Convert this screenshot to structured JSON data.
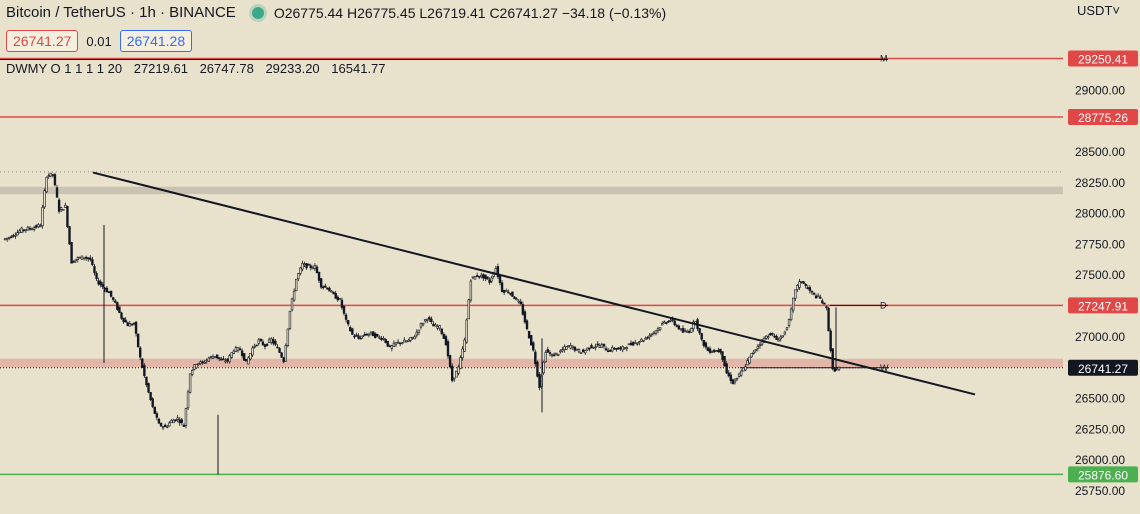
{
  "header": {
    "symbol": "Bitcoin / TetherUS · 1h · BINANCE",
    "ohlc": "O26775.44 H26775.45 L26719.41 C26741.27 −34.18 (−0.13%)",
    "sell_price": "26741.27",
    "spread": "0.01",
    "buy_price": "26741.28"
  },
  "indicator": {
    "name": "DWMY O 1 1 1 1 20",
    "values": [
      "27219.61",
      "26747.78",
      "29233.20",
      "16541.77"
    ]
  },
  "currency": "USDT˅",
  "chart_data": {
    "type": "candlestick",
    "symbol": "BTCUSDT",
    "interval": "1h",
    "ylim": [
      25750,
      29400
    ],
    "y_ticks": [
      29000,
      28750,
      28500,
      28250,
      28000,
      27750,
      27500,
      27250,
      27000,
      26750,
      26500,
      26250,
      26000,
      25750
    ],
    "y_tick_labels": [
      "29000.00",
      "28750.00",
      "28500.00",
      "28250.00",
      "28000.00",
      "27750.00",
      "27500.00",
      "27250.00",
      "27000.00",
      "26750.00",
      "26500.00",
      "26250.00",
      "26000.00",
      "25750.00"
    ],
    "price_levels": [
      {
        "value": 29250.41,
        "label": "29250.41",
        "color": "#e04848",
        "mark": "M"
      },
      {
        "value": 28775.26,
        "label": "28775.26",
        "color": "#e04848",
        "mark": ""
      },
      {
        "value": 27247.91,
        "label": "27247.91",
        "color": "#e04848",
        "mark": "D"
      },
      {
        "value": 25876.6,
        "label": "25876.60",
        "color": "#4caf50",
        "mark": ""
      }
    ],
    "last_price": {
      "value": 26741.27,
      "label": "26741.27",
      "mark": "W"
    },
    "zones": [
      {
        "from": 28150,
        "to": 28210,
        "color": "#c9c3b3"
      },
      {
        "from": 26745,
        "to": 26815,
        "color": "#e2b6a8"
      }
    ],
    "trendline": {
      "from": 28325,
      "to": 26525
    },
    "close_path": [
      27780,
      27800,
      27830,
      27860,
      27870,
      27880,
      27900,
      28300,
      28310,
      28020,
      28050,
      27600,
      27630,
      27640,
      27620,
      27450,
      27400,
      27350,
      27260,
      27150,
      27090,
      27100,
      26820,
      26600,
      26420,
      26280,
      26260,
      26310,
      26330,
      26270,
      26700,
      26780,
      26780,
      26820,
      26840,
      26800,
      26800,
      26890,
      26890,
      26780,
      26900,
      26960,
      26920,
      26970,
      26900,
      26800,
      27200,
      27460,
      27580,
      27560,
      27560,
      27410,
      27390,
      27330,
      27290,
      27120,
      27010,
      26980,
      27010,
      27020,
      26990,
      26980,
      26900,
      26940,
      26950,
      26960,
      27000,
      27090,
      27150,
      27080,
      27070,
      26940,
      26640,
      26740,
      26960,
      27460,
      27490,
      27480,
      27440,
      27550,
      27370,
      27360,
      27310,
      27250,
      27050,
      26880,
      26590,
      26880,
      26840,
      26860,
      26900,
      26920,
      26880,
      26870,
      26910,
      26920,
      26920,
      26880,
      26900,
      26890,
      26920,
      26940,
      26960,
      26980,
      27020,
      27060,
      27110,
      27130,
      27080,
      27030,
      27040,
      27130,
      26960,
      26880,
      26880,
      26880,
      26700,
      26620,
      26680,
      26760,
      26850,
      26920,
      26980,
      27020,
      26970,
      27000,
      27120,
      27380,
      27450,
      27380,
      27330,
      27300,
      27220,
      26720,
      26741.27
    ]
  }
}
